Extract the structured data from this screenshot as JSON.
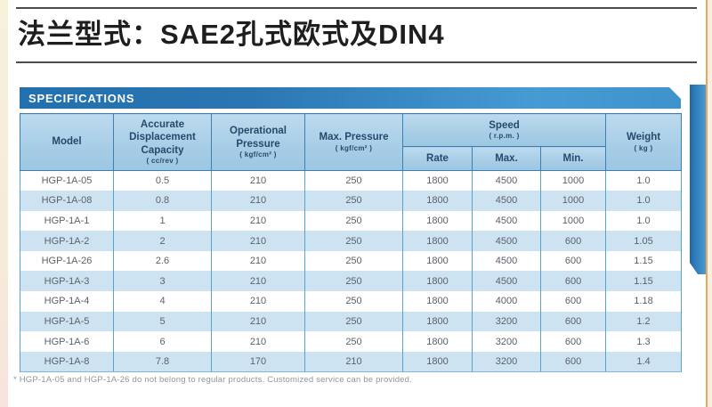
{
  "page": {
    "title": "法兰型式：SAE2孔式欧式及DIN4"
  },
  "section": {
    "label": "SPECIFICATIONS"
  },
  "table": {
    "headers": {
      "model": "Model",
      "capacity": "Accurate Displacement Capacity",
      "capacity_unit": "( cc/rev )",
      "op_pressure": "Operational Pressure",
      "op_pressure_unit": "( kgf/cm² )",
      "max_pressure": "Max. Pressure",
      "max_pressure_unit": "( kgf/cm² )",
      "speed": "Speed",
      "speed_unit": "( r.p.m. )",
      "rate": "Rate",
      "max": "Max.",
      "min": "Min.",
      "weight": "Weight",
      "weight_unit": "( kg )"
    },
    "rows": [
      [
        "HGP-1A-05",
        "0.5",
        "210",
        "250",
        "1800",
        "4500",
        "1000",
        "1.0"
      ],
      [
        "HGP-1A-08",
        "0.8",
        "210",
        "250",
        "1800",
        "4500",
        "1000",
        "1.0"
      ],
      [
        "HGP-1A-1",
        "1",
        "210",
        "250",
        "1800",
        "4500",
        "1000",
        "1.0"
      ],
      [
        "HGP-1A-2",
        "2",
        "210",
        "250",
        "1800",
        "4500",
        "600",
        "1.05"
      ],
      [
        "HGP-1A-26",
        "2.6",
        "210",
        "250",
        "1800",
        "4500",
        "600",
        "1.15"
      ],
      [
        "HGP-1A-3",
        "3",
        "210",
        "250",
        "1800",
        "4500",
        "600",
        "1.15"
      ],
      [
        "HGP-1A-4",
        "4",
        "210",
        "250",
        "1800",
        "4000",
        "600",
        "1.18"
      ],
      [
        "HGP-1A-5",
        "5",
        "210",
        "250",
        "1800",
        "3200",
        "600",
        "1.2"
      ],
      [
        "HGP-1A-6",
        "6",
        "210",
        "250",
        "1800",
        "3200",
        "600",
        "1.3"
      ],
      [
        "HGP-1A-8",
        "7.8",
        "170",
        "210",
        "1800",
        "3200",
        "600",
        "1.4"
      ]
    ]
  },
  "footnote": "* HGP-1A-05 and HGP-1A-26 do not belong to regular products. Customized service can be provided.",
  "colors": {
    "accent_dark": "#2270ad",
    "accent": "#3f93cc",
    "header_bg": "#a6cde6",
    "stripe": "#cde3f2",
    "edge_orange": "#eaa65c"
  }
}
